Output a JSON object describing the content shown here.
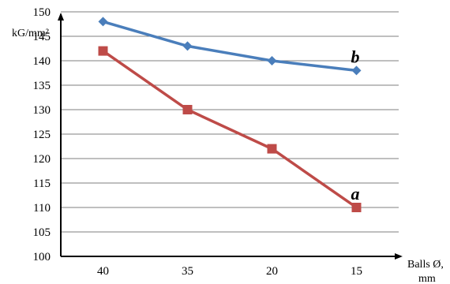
{
  "chart_data": {
    "type": "line",
    "categories": [
      "40",
      "35",
      "20",
      "15"
    ],
    "series": [
      {
        "name": "b",
        "values": [
          148,
          143,
          140,
          138
        ],
        "color": "#4a7ebb",
        "marker": "diamond"
      },
      {
        "name": "a",
        "values": [
          142,
          130,
          122,
          110
        ],
        "color": "#be4b48",
        "marker": "square"
      }
    ],
    "ylabel": "kG/mm²",
    "xlabel_line1": "Balls Ø,",
    "xlabel_line2": "mm",
    "ylim": [
      100,
      150
    ],
    "yticks": [
      100,
      105,
      110,
      115,
      120,
      125,
      130,
      135,
      140,
      145,
      150
    ],
    "grid": true,
    "legend": "none"
  }
}
